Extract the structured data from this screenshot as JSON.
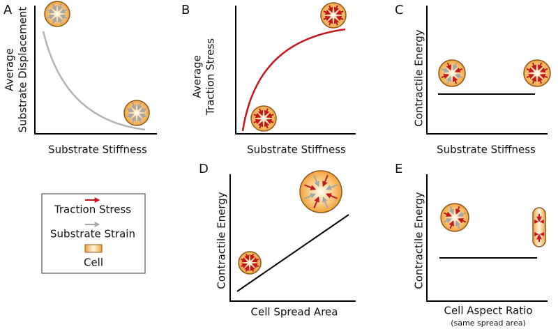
{
  "panels": [
    {
      "letter": "A",
      "y_label": [
        "Average",
        "Substrate Displacement"
      ],
      "x_label": "Substrate Stiffness"
    },
    {
      "letter": "B",
      "y_label": [
        "Average",
        "Traction Stress"
      ],
      "x_label": "Substrate Stiffness"
    },
    {
      "letter": "C",
      "y_label": [
        "Contractile Energy"
      ],
      "x_label": "Substrate Stiffness"
    },
    {
      "letter": "D",
      "y_label": [
        "Contractile Energy"
      ],
      "x_label": "Cell Spread Area"
    },
    {
      "letter": "E",
      "y_label": [
        "Contractile Energy"
      ],
      "x_label": "Cell Aspect Ratio",
      "note": "(same spread area)"
    }
  ],
  "legend": {
    "items": [
      "Traction Stress",
      "Substrate Strain",
      "Cell"
    ]
  }
}
